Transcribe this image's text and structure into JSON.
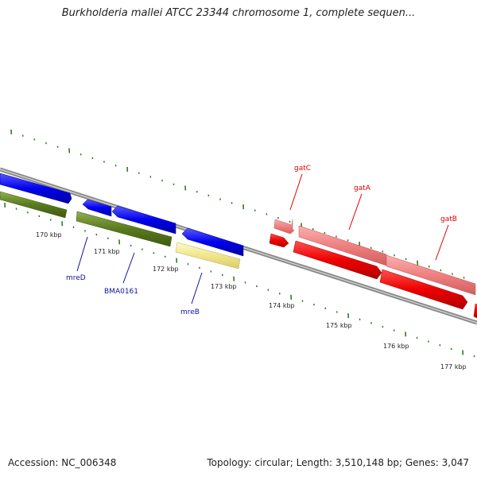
{
  "title": "Burkholderia mallei ATCC 23344 chromosome 1, complete sequen...",
  "footer": {
    "accession": "Accession: NC_006348",
    "summary": "Topology: circular; Length: 3,510,148 bp; Genes: 3,047"
  },
  "colors": {
    "blue_gene": "#0000ee",
    "green_gene": "#5a7a1e",
    "yellow_gene": "#f0e68c",
    "pink_gene": "#f08080",
    "red_gene": "#ee0000",
    "tick": "#2f7a2f",
    "backbone": "#888888",
    "red_label": "#dd0000",
    "blue_label": "#1010a0"
  },
  "ticks": [
    {
      "label": "170 kbp"
    },
    {
      "label": "171 kbp"
    },
    {
      "label": "172 kbp"
    },
    {
      "label": "173 kbp"
    },
    {
      "label": "174 kbp"
    },
    {
      "label": "175 kbp"
    },
    {
      "label": "176 kbp"
    },
    {
      "label": "177 kbp"
    }
  ],
  "gene_labels": [
    {
      "name": "gatC",
      "group": "red"
    },
    {
      "name": "gatA",
      "group": "red"
    },
    {
      "name": "gatB",
      "group": "red"
    },
    {
      "name": "mreD",
      "group": "blue"
    },
    {
      "name": "BMA0161",
      "group": "blue"
    },
    {
      "name": "mreB",
      "group": "blue"
    }
  ]
}
